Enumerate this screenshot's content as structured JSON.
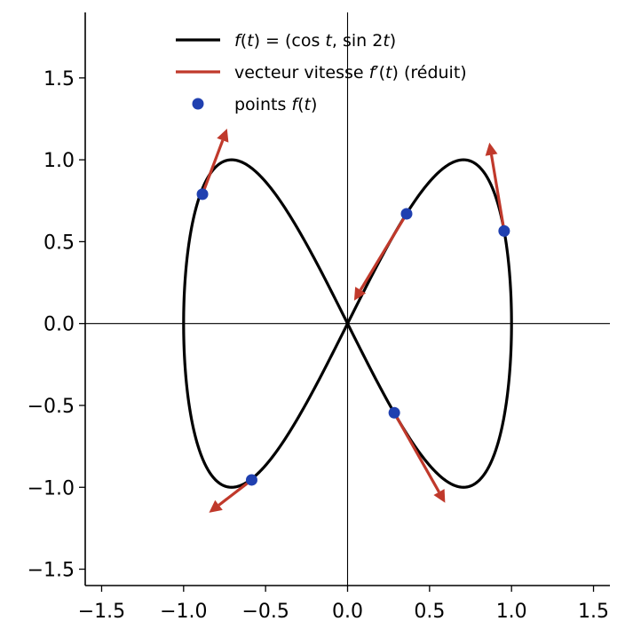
{
  "chart_data": {
    "type": "line",
    "title": "",
    "xlabel": "",
    "ylabel": "",
    "xlim": [
      -1.6,
      1.6
    ],
    "ylim": [
      -1.6,
      1.9
    ],
    "grid": false,
    "legend_position": "top-center",
    "xticks": [
      -1.5,
      -1.0,
      -0.5,
      0.0,
      0.5,
      1.0,
      1.5
    ],
    "yticks": [
      -1.5,
      -1.0,
      -0.5,
      0.0,
      0.5,
      1.0,
      1.5
    ],
    "xtick_labels": [
      "−1.5",
      "−1.0",
      "−0.5",
      "0.0",
      "0.5",
      "1.0",
      "1.5"
    ],
    "ytick_labels": [
      "−1.5",
      "−1.0",
      "−0.5",
      "0.0",
      "0.5",
      "1.0",
      "1.5"
    ],
    "series": [
      {
        "kind": "curve",
        "name": "f(t) = (cos t, sin 2t)",
        "label_parts": [
          {
            "text": "f",
            "italic": true
          },
          {
            "text": "(",
            "italic": false
          },
          {
            "text": "t",
            "italic": true
          },
          {
            "text": ") = (cos ",
            "italic": false
          },
          {
            "text": "t",
            "italic": true
          },
          {
            "text": ", sin 2",
            "italic": false
          },
          {
            "text": "t",
            "italic": true
          },
          {
            "text": ")",
            "italic": false
          }
        ],
        "color": "#000000",
        "parametric": "x = cos(t), y = sin(2t), t in [0, 2π]"
      },
      {
        "kind": "arrows",
        "name": "vecteur vitesse f′(t) (réduit)",
        "label_parts": [
          {
            "text": "vecteur vitesse ",
            "italic": false
          },
          {
            "text": "f",
            "italic": true
          },
          {
            "text": "′(",
            "italic": false
          },
          {
            "text": "t",
            "italic": true
          },
          {
            "text": ") (réduit)",
            "italic": false
          }
        ],
        "color": "#c0392b",
        "arrows": [
          {
            "x": 0.36,
            "y": 0.67,
            "dx": -0.32,
            "dy": -0.53
          },
          {
            "x": 0.955,
            "y": 0.565,
            "dx": -0.09,
            "dy": 0.54
          },
          {
            "x": -0.885,
            "y": 0.79,
            "dx": 0.15,
            "dy": 0.4
          },
          {
            "x": -0.585,
            "y": -0.955,
            "dx": -0.26,
            "dy": -0.2
          },
          {
            "x": 0.285,
            "y": -0.545,
            "dx": 0.31,
            "dy": -0.55
          }
        ]
      },
      {
        "kind": "points",
        "name": "points f(t)",
        "label_parts": [
          {
            "text": "points ",
            "italic": false
          },
          {
            "text": "f",
            "italic": true
          },
          {
            "text": "(",
            "italic": false
          },
          {
            "text": "t",
            "italic": true
          },
          {
            "text": ")",
            "italic": false
          }
        ],
        "color": "#2040b0",
        "points": [
          {
            "x": 0.36,
            "y": 0.67
          },
          {
            "x": 0.955,
            "y": 0.565
          },
          {
            "x": -0.885,
            "y": 0.79
          },
          {
            "x": -0.585,
            "y": -0.955
          },
          {
            "x": 0.285,
            "y": -0.545
          }
        ]
      }
    ]
  }
}
